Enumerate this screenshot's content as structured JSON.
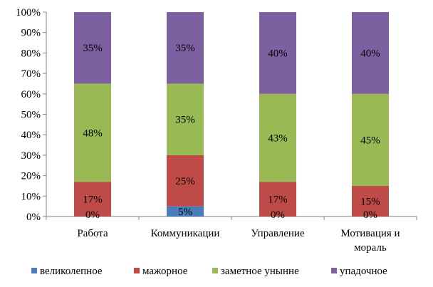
{
  "chart_data": {
    "type": "bar",
    "stacked": true,
    "categories": [
      [
        "Работа"
      ],
      [
        "Коммуникации"
      ],
      [
        "Управление"
      ],
      [
        "Мотивация и",
        "мораль"
      ]
    ],
    "series": [
      {
        "name": "великолепное",
        "color": "#4A7EBB",
        "values": [
          0,
          5,
          0,
          0
        ],
        "labels": [
          "0%",
          "5%",
          "",
          "0%"
        ]
      },
      {
        "name": "мажорное",
        "color": "#BE4B48",
        "values": [
          17,
          25,
          17,
          15
        ],
        "labels": [
          "17%",
          "25%",
          "17%",
          "15%"
        ]
      },
      {
        "name": "заметное унынне",
        "color": "#98B954",
        "values": [
          48,
          35,
          43,
          45
        ],
        "labels": [
          "48%",
          "35%",
          "43%",
          "45%"
        ]
      },
      {
        "name": "упадочное",
        "color": "#7D60A0",
        "values": [
          35,
          35,
          40,
          40
        ],
        "labels": [
          "35%",
          "35%",
          "40%",
          "40%"
        ]
      }
    ],
    "zero_labels": [
      {
        "category": 0,
        "text": "0%"
      },
      {
        "category": 2,
        "text": "0%"
      },
      {
        "category": 3,
        "text": "0%"
      }
    ],
    "y_ticks": [
      "0%",
      "10%",
      "20%",
      "30%",
      "40%",
      "50%",
      "60%",
      "70%",
      "80%",
      "90%",
      "100%"
    ],
    "ylim": [
      0,
      100
    ],
    "grid": false,
    "legend_position": "bottom"
  }
}
